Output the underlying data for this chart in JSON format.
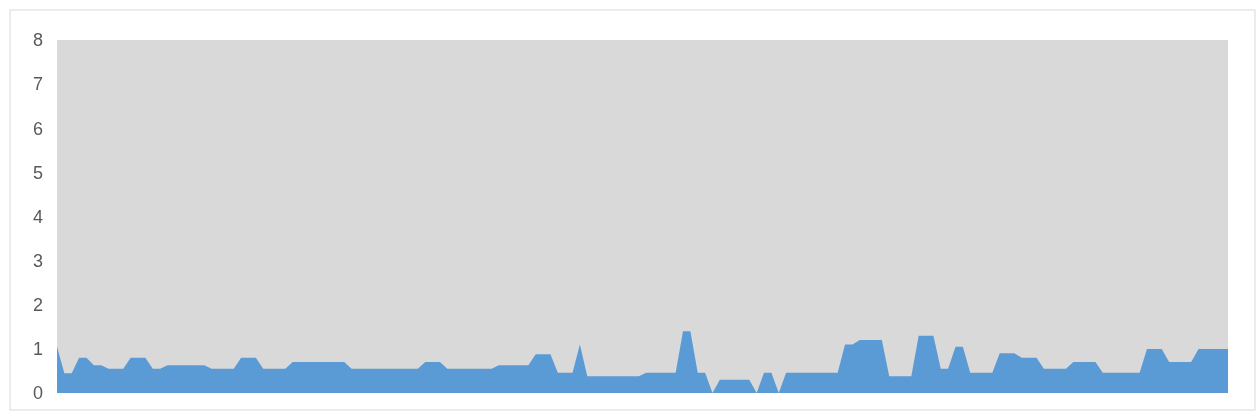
{
  "chart_data": {
    "type": "area",
    "categories": [
      null,
      null,
      null,
      null,
      null,
      null,
      null,
      null,
      null,
      null,
      null,
      null,
      null,
      null,
      null,
      null,
      null,
      null,
      null,
      null,
      null,
      null,
      null,
      null,
      null,
      null,
      null,
      null,
      null,
      null,
      null,
      null,
      null,
      null,
      null,
      null,
      null,
      null,
      null,
      null,
      null,
      null,
      null,
      null,
      null,
      null,
      null,
      null,
      null,
      null,
      null,
      null,
      null,
      null,
      null,
      null,
      null,
      null,
      null,
      null,
      null,
      null,
      null,
      null,
      null,
      null,
      null,
      null,
      null,
      null,
      null,
      null,
      null,
      null,
      null,
      null,
      null,
      null,
      null,
      null,
      null,
      null,
      null,
      null,
      null,
      null,
      null,
      null,
      null,
      null,
      null,
      null,
      null,
      null,
      null,
      null,
      null,
      null,
      null,
      null,
      null,
      null,
      null,
      null,
      null,
      null,
      null,
      null,
      null,
      null,
      null,
      null,
      null,
      null,
      null,
      null,
      null,
      null,
      null,
      null,
      null,
      null,
      null,
      null,
      null,
      null,
      null,
      null,
      null,
      null,
      null,
      null,
      null,
      null,
      null,
      null,
      null,
      null,
      null,
      null,
      null,
      null,
      null,
      null,
      null,
      null,
      null,
      null,
      null,
      null,
      null,
      null,
      null,
      null,
      null,
      null,
      null,
      null,
      null,
      null
    ],
    "series": [
      {
        "color": "#5b9bd5",
        "values": [
          1.05,
          0.45,
          0.45,
          0.8,
          0.8,
          0.63,
          0.63,
          0.55,
          0.55,
          0.55,
          0.8,
          0.8,
          0.8,
          0.55,
          0.55,
          0.63,
          0.63,
          0.63,
          0.63,
          0.63,
          0.63,
          0.55,
          0.55,
          0.55,
          0.55,
          0.8,
          0.8,
          0.8,
          0.55,
          0.55,
          0.55,
          0.55,
          0.7,
          0.7,
          0.7,
          0.7,
          0.7,
          0.7,
          0.7,
          0.7,
          0.55,
          0.55,
          0.55,
          0.55,
          0.55,
          0.55,
          0.55,
          0.55,
          0.55,
          0.55,
          0.7,
          0.7,
          0.7,
          0.55,
          0.55,
          0.55,
          0.55,
          0.55,
          0.55,
          0.55,
          0.63,
          0.63,
          0.63,
          0.63,
          0.63,
          0.88,
          0.88,
          0.88,
          0.46,
          0.46,
          0.46,
          1.1,
          0.38,
          0.38,
          0.38,
          0.38,
          0.38,
          0.38,
          0.38,
          0.38,
          0.46,
          0.46,
          0.46,
          0.46,
          0.46,
          1.4,
          1.4,
          0.46,
          0.46,
          null,
          0.3,
          0.3,
          0.3,
          0.3,
          0.3,
          null,
          0.46,
          0.46,
          null,
          0.46,
          0.46,
          0.46,
          0.46,
          0.46,
          0.46,
          0.46,
          0.46,
          1.1,
          1.1,
          1.2,
          1.2,
          1.2,
          1.2,
          0.38,
          0.38,
          0.38,
          0.38,
          1.3,
          1.3,
          1.3,
          0.55,
          0.55,
          1.05,
          1.05,
          0.46,
          0.46,
          0.46,
          0.46,
          0.9,
          0.9,
          0.9,
          0.8,
          0.8,
          0.8,
          0.55,
          0.55,
          0.55,
          0.55,
          0.7,
          0.7,
          0.7,
          0.7,
          0.46,
          0.46,
          0.46,
          0.46,
          0.46,
          0.46,
          1.0,
          1.0,
          1.0,
          0.7,
          0.7,
          0.7,
          0.7,
          1.0,
          1.0,
          1.0,
          1.0,
          1.0
        ]
      }
    ],
    "ylim": [
      0,
      8
    ],
    "yticks": [
      0,
      1,
      2,
      3,
      4,
      5,
      6,
      7,
      8
    ]
  }
}
